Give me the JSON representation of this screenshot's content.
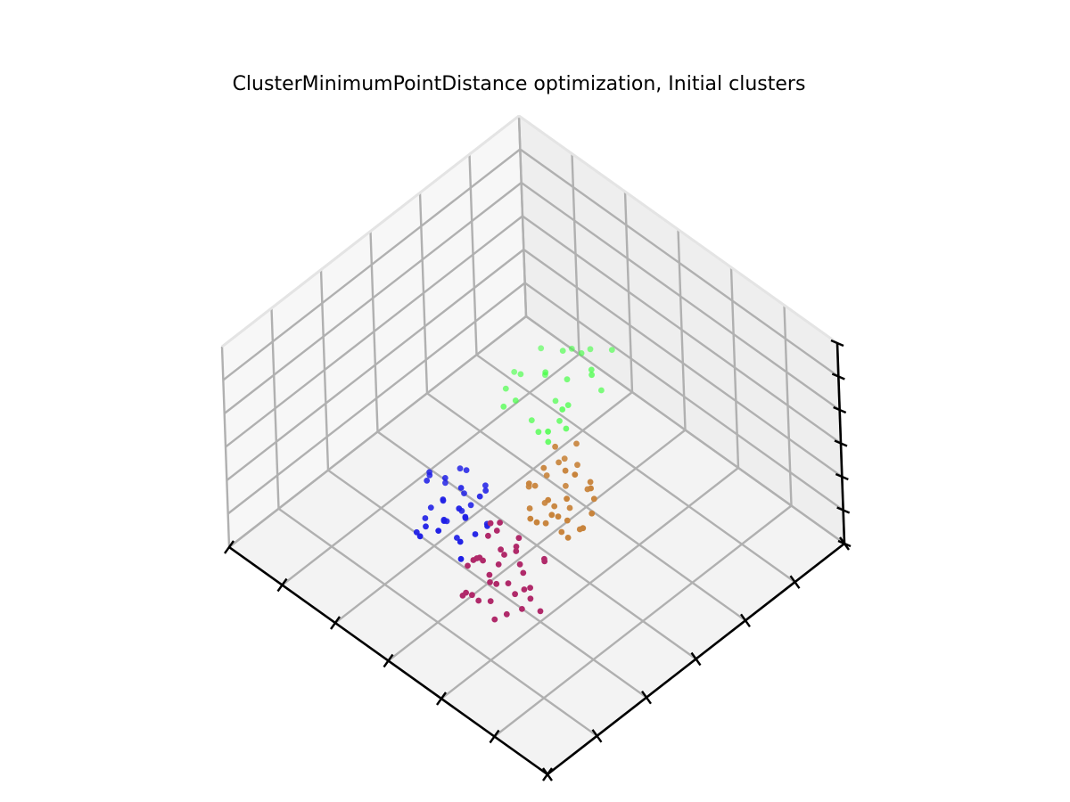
{
  "chart_data": {
    "type": "scatter",
    "projection": "3d",
    "title": "ClusterMinimumPointDistance optimization, Initial clusters",
    "xlabel": "",
    "ylabel": "",
    "zlabel": "",
    "grid": true,
    "tick_labels": false,
    "series": [
      {
        "color": "#44ff44",
        "points": [
          [
            0.18,
            0.45,
            0.55
          ],
          [
            0.2,
            0.4,
            0.52
          ],
          [
            0.22,
            0.36,
            0.5
          ],
          [
            0.25,
            0.42,
            0.58
          ],
          [
            0.26,
            0.3,
            0.48
          ],
          [
            0.28,
            0.48,
            0.6
          ],
          [
            0.3,
            0.35,
            0.45
          ],
          [
            0.32,
            0.4,
            0.4
          ],
          [
            0.33,
            0.28,
            0.42
          ],
          [
            0.35,
            0.44,
            0.38
          ],
          [
            0.36,
            0.33,
            0.5
          ],
          [
            0.38,
            0.38,
            0.35
          ],
          [
            0.3,
            0.5,
            0.62
          ],
          [
            0.34,
            0.46,
            0.47
          ],
          [
            0.39,
            0.31,
            0.44
          ],
          [
            0.4,
            0.42,
            0.36
          ],
          [
            0.37,
            0.48,
            0.41
          ],
          [
            0.41,
            0.36,
            0.46
          ],
          [
            0.27,
            0.38,
            0.57
          ],
          [
            0.42,
            0.47,
            0.39
          ],
          [
            0.31,
            0.43,
            0.53
          ],
          [
            0.43,
            0.34,
            0.43
          ],
          [
            0.24,
            0.47,
            0.44
          ],
          [
            0.45,
            0.5,
            0.51
          ],
          [
            0.36,
            0.41,
            0.6
          ],
          [
            0.39,
            0.49,
            0.54
          ]
        ]
      },
      {
        "color": "#c8843c",
        "points": [
          [
            0.52,
            0.6,
            0.55
          ],
          [
            0.55,
            0.65,
            0.6
          ],
          [
            0.5,
            0.68,
            0.52
          ],
          [
            0.58,
            0.58,
            0.48
          ],
          [
            0.48,
            0.62,
            0.62
          ],
          [
            0.54,
            0.72,
            0.58
          ],
          [
            0.6,
            0.64,
            0.5
          ],
          [
            0.57,
            0.7,
            0.66
          ],
          [
            0.52,
            0.56,
            0.44
          ],
          [
            0.62,
            0.6,
            0.56
          ],
          [
            0.49,
            0.66,
            0.45
          ],
          [
            0.56,
            0.62,
            0.4
          ],
          [
            0.58,
            0.68,
            0.42
          ],
          [
            0.53,
            0.64,
            0.38
          ],
          [
            0.61,
            0.66,
            0.46
          ],
          [
            0.55,
            0.58,
            0.36
          ],
          [
            0.5,
            0.6,
            0.41
          ],
          [
            0.59,
            0.62,
            0.35
          ],
          [
            0.63,
            0.7,
            0.52
          ],
          [
            0.51,
            0.7,
            0.47
          ],
          [
            0.57,
            0.55,
            0.43
          ],
          [
            0.54,
            0.68,
            0.33
          ],
          [
            0.6,
            0.58,
            0.39
          ],
          [
            0.56,
            0.74,
            0.5
          ],
          [
            0.64,
            0.62,
            0.43
          ],
          [
            0.48,
            0.58,
            0.5
          ],
          [
            0.62,
            0.72,
            0.62
          ],
          [
            0.53,
            0.6,
            0.64
          ],
          [
            0.58,
            0.66,
            0.34
          ],
          [
            0.55,
            0.7,
            0.37
          ],
          [
            0.66,
            0.66,
            0.48
          ],
          [
            0.5,
            0.64,
            0.56
          ],
          [
            0.6,
            0.7,
            0.38
          ],
          [
            0.57,
            0.6,
            0.58
          ]
        ]
      },
      {
        "color": "#1f1fe6",
        "points": [
          [
            0.62,
            0.4,
            0.4
          ],
          [
            0.65,
            0.36,
            0.35
          ],
          [
            0.6,
            0.44,
            0.32
          ],
          [
            0.66,
            0.42,
            0.38
          ],
          [
            0.68,
            0.38,
            0.3
          ],
          [
            0.64,
            0.46,
            0.36
          ],
          [
            0.7,
            0.4,
            0.34
          ],
          [
            0.63,
            0.34,
            0.28
          ],
          [
            0.67,
            0.44,
            0.27
          ],
          [
            0.61,
            0.38,
            0.25
          ],
          [
            0.69,
            0.46,
            0.31
          ],
          [
            0.72,
            0.42,
            0.29
          ],
          [
            0.66,
            0.32,
            0.33
          ],
          [
            0.64,
            0.4,
            0.22
          ],
          [
            0.7,
            0.36,
            0.26
          ],
          [
            0.58,
            0.42,
            0.3
          ],
          [
            0.68,
            0.48,
            0.24
          ],
          [
            0.74,
            0.44,
            0.33
          ],
          [
            0.62,
            0.46,
            0.2
          ],
          [
            0.72,
            0.36,
            0.23
          ],
          [
            0.66,
            0.5,
            0.28
          ],
          [
            0.76,
            0.4,
            0.28
          ],
          [
            0.6,
            0.36,
            0.34
          ],
          [
            0.7,
            0.44,
            0.2
          ],
          [
            0.78,
            0.46,
            0.35
          ],
          [
            0.64,
            0.3,
            0.3
          ],
          [
            0.73,
            0.48,
            0.26
          ],
          [
            0.67,
            0.38,
            0.18
          ],
          [
            0.8,
            0.42,
            0.3
          ],
          [
            0.75,
            0.5,
            0.22
          ],
          [
            0.69,
            0.34,
            0.36
          ],
          [
            0.63,
            0.42,
            0.26
          ],
          [
            0.71,
            0.46,
            0.38
          ],
          [
            0.77,
            0.38,
            0.24
          ]
        ]
      },
      {
        "color": "#b02a6a",
        "points": [
          [
            0.68,
            0.62,
            0.38
          ],
          [
            0.72,
            0.66,
            0.34
          ],
          [
            0.7,
            0.58,
            0.3
          ],
          [
            0.75,
            0.64,
            0.4
          ],
          [
            0.66,
            0.68,
            0.32
          ],
          [
            0.78,
            0.6,
            0.36
          ],
          [
            0.73,
            0.7,
            0.28
          ],
          [
            0.71,
            0.56,
            0.42
          ],
          [
            0.76,
            0.68,
            0.26
          ],
          [
            0.8,
            0.64,
            0.32
          ],
          [
            0.69,
            0.64,
            0.24
          ],
          [
            0.74,
            0.58,
            0.22
          ],
          [
            0.82,
            0.68,
            0.38
          ],
          [
            0.77,
            0.72,
            0.34
          ],
          [
            0.72,
            0.62,
            0.2
          ],
          [
            0.79,
            0.56,
            0.3
          ],
          [
            0.84,
            0.62,
            0.28
          ],
          [
            0.7,
            0.72,
            0.4
          ],
          [
            0.75,
            0.54,
            0.26
          ],
          [
            0.81,
            0.7,
            0.24
          ],
          [
            0.73,
            0.66,
            0.44
          ],
          [
            0.78,
            0.62,
            0.18
          ],
          [
            0.86,
            0.66,
            0.32
          ],
          [
            0.67,
            0.6,
            0.28
          ],
          [
            0.8,
            0.74,
            0.3
          ],
          [
            0.76,
            0.6,
            0.46
          ],
          [
            0.83,
            0.58,
            0.22
          ],
          [
            0.71,
            0.68,
            0.18
          ],
          [
            0.88,
            0.64,
            0.36
          ],
          [
            0.74,
            0.74,
            0.22
          ],
          [
            0.79,
            0.66,
            0.42
          ],
          [
            0.85,
            0.7,
            0.26
          ],
          [
            0.69,
            0.56,
            0.36
          ],
          [
            0.82,
            0.62,
            0.44
          ],
          [
            0.77,
            0.58,
            0.34
          ],
          [
            0.72,
            0.6,
            0.48
          ]
        ]
      }
    ]
  }
}
